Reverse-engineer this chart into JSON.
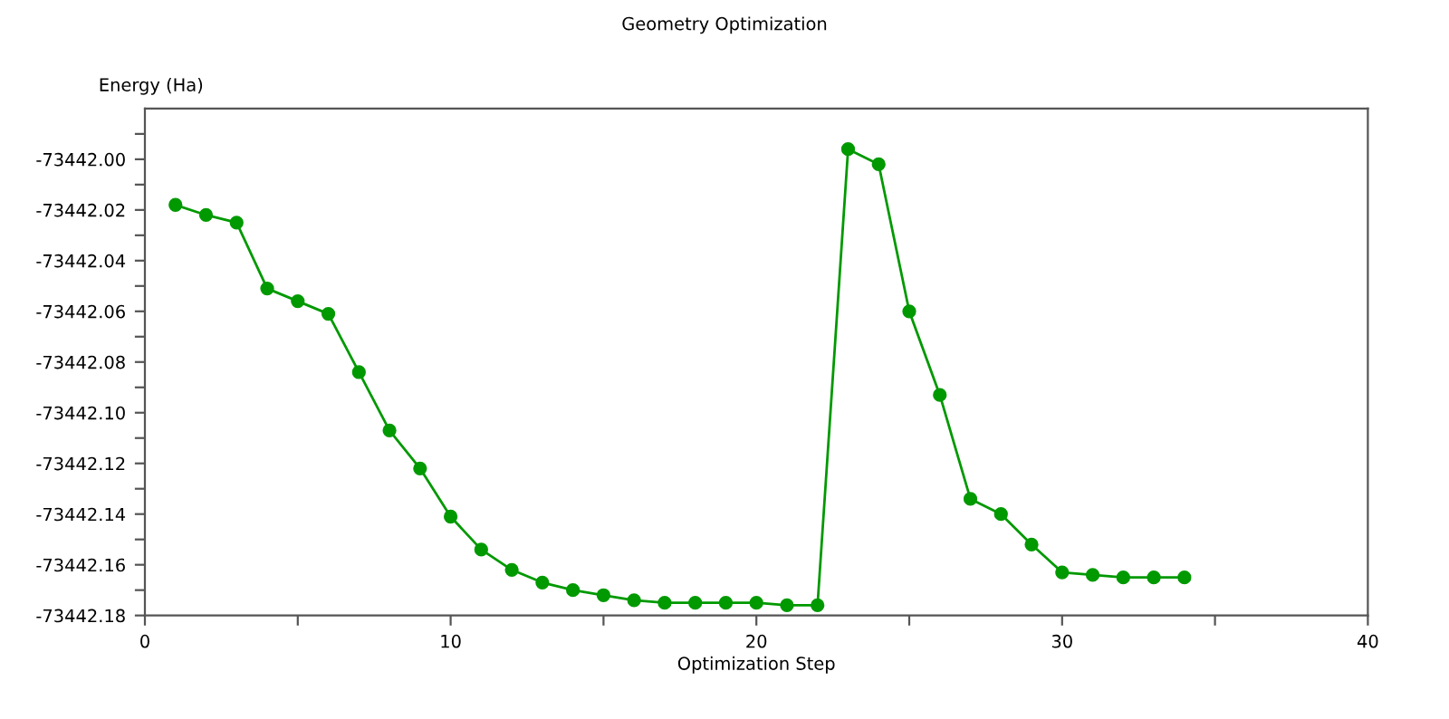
{
  "chart_data": {
    "type": "line",
    "title": "Geometry Optimization",
    "xlabel": "Optimization Step",
    "ylabel": "Energy (Ha)",
    "x": [
      1,
      2,
      3,
      4,
      5,
      6,
      7,
      8,
      9,
      10,
      11,
      12,
      13,
      14,
      15,
      16,
      17,
      18,
      19,
      20,
      21,
      22,
      23,
      24,
      25,
      26,
      27,
      28,
      29,
      30,
      31,
      32,
      33,
      34
    ],
    "series": [
      {
        "color": "#009900",
        "values": [
          -73442.018,
          -73442.022,
          -73442.025,
          -73442.051,
          -73442.056,
          -73442.061,
          -73442.084,
          -73442.107,
          -73442.122,
          -73442.141,
          -73442.154,
          -73442.162,
          -73442.167,
          -73442.17,
          -73442.172,
          -73442.174,
          -73442.175,
          -73442.175,
          -73442.175,
          -73442.175,
          -73442.176,
          -73442.176,
          -73441.996,
          -73442.002,
          -73442.06,
          -73442.093,
          -73442.134,
          -73442.14,
          -73442.152,
          -73442.163,
          -73442.164,
          -73442.165,
          -73442.165,
          -73442.165
        ]
      }
    ],
    "xlim": [
      0,
      40
    ],
    "ylim": [
      -73442.18,
      -73441.98
    ],
    "xticks": [
      0,
      {
        "value": 5,
        "label": null
      },
      10,
      {
        "value": 15,
        "label": null
      },
      20,
      {
        "value": 25,
        "label": null
      },
      30,
      {
        "value": 35,
        "label": null
      },
      40
    ],
    "yticks": [
      {
        "value": -73442.18,
        "label": "-73442.18"
      },
      {
        "value": -73442.17,
        "label": null
      },
      {
        "value": -73442.16,
        "label": "-73442.16"
      },
      {
        "value": -73442.15,
        "label": null
      },
      {
        "value": -73442.14,
        "label": "-73442.14"
      },
      {
        "value": -73442.13,
        "label": null
      },
      {
        "value": -73442.12,
        "label": "-73442.12"
      },
      {
        "value": -73442.11,
        "label": null
      },
      {
        "value": -73442.1,
        "label": "-73442.10"
      },
      {
        "value": -73442.09,
        "label": null
      },
      {
        "value": -73442.08,
        "label": "-73442.08"
      },
      {
        "value": -73442.07,
        "label": null
      },
      {
        "value": -73442.06,
        "label": "-73442.06"
      },
      {
        "value": -73442.05,
        "label": null
      },
      {
        "value": -73442.04,
        "label": "-73442.04"
      },
      {
        "value": -73442.03,
        "label": null
      },
      {
        "value": -73442.02,
        "label": "-73442.02"
      },
      {
        "value": -73442.01,
        "label": null
      },
      {
        "value": -73442.0,
        "label": "-73442.00"
      },
      {
        "value": -73441.99,
        "label": null
      }
    ],
    "grid": false,
    "legend": false,
    "marker": "circle",
    "line_style": "solid"
  }
}
